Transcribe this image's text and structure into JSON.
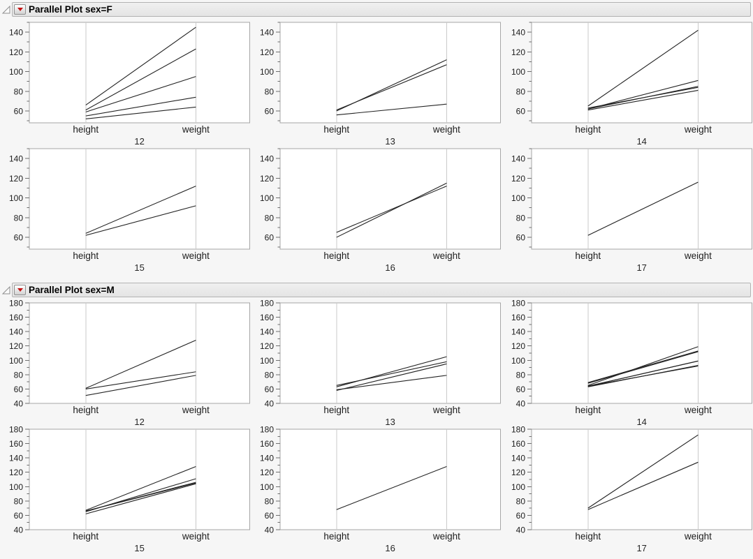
{
  "window": {
    "background": "#f6f6f6",
    "kind": "statistics-report"
  },
  "icons": {
    "disclosure_open": "open-right-triangle-outline-icon",
    "red_triangle_menu": "red-triangle-down-icon"
  },
  "colors": {
    "header_bg": "#eaeaea",
    "header_border": "#b2b2b2",
    "frame_border": "#a6a6a6",
    "gridline": "#c9c9c9",
    "axis": "#6f6f6f",
    "line": "#222222",
    "red_triangle": "#c41414",
    "text": "#1c1c1c"
  },
  "chart_data": [
    {
      "type": "line",
      "subtype": "parallel-coordinates",
      "title": "Parallel Plot sex=F",
      "categories": [
        "height",
        "weight"
      ],
      "ylim": [
        48,
        150
      ],
      "yticks": [
        60,
        80,
        100,
        120,
        140
      ],
      "yticks_minor": [
        50,
        70,
        90,
        110,
        130,
        150
      ],
      "grid": "category-gridlines-only",
      "legend": "none",
      "panels": [
        {
          "age": "12",
          "rows": [
            [
              59,
              95
            ],
            [
              61,
              123
            ],
            [
              55,
              74
            ],
            [
              66,
              145
            ],
            [
              52,
              64
            ]
          ]
        },
        {
          "age": "13",
          "rows": [
            [
              60,
              112
            ],
            [
              61,
              107
            ],
            [
              56,
              67
            ]
          ]
        },
        {
          "age": "14",
          "rows": [
            [
              61,
              81
            ],
            [
              62,
              91
            ],
            [
              65,
              142
            ],
            [
              63,
              84
            ],
            [
              62,
              85
            ]
          ]
        },
        {
          "age": "15",
          "rows": [
            [
              62,
              92
            ],
            [
              64,
              112
            ]
          ]
        },
        {
          "age": "16",
          "rows": [
            [
              65,
              112
            ],
            [
              60,
              115
            ]
          ]
        },
        {
          "age": "17",
          "rows": [
            [
              62,
              116
            ]
          ]
        }
      ]
    },
    {
      "type": "line",
      "subtype": "parallel-coordinates",
      "title": "Parallel Plot sex=M",
      "categories": [
        "height",
        "weight"
      ],
      "ylim": [
        40,
        180
      ],
      "yticks": [
        40,
        60,
        80,
        100,
        120,
        140,
        160,
        180
      ],
      "yticks_minor": [
        50,
        70,
        90,
        110,
        130,
        150,
        170
      ],
      "grid": "category-gridlines-only",
      "legend": "none",
      "panels": [
        {
          "age": "12",
          "rows": [
            [
              60,
              84
            ],
            [
              61,
              128
            ],
            [
              51,
              79
            ]
          ]
        },
        {
          "age": "13",
          "rows": [
            [
              65,
              98
            ],
            [
              63,
              105
            ],
            [
              58,
              95
            ],
            [
              59,
              79
            ]
          ]
        },
        {
          "age": "14",
          "rows": [
            [
              63,
              93
            ],
            [
              64,
              99
            ],
            [
              65,
              119
            ],
            [
              64,
              92
            ],
            [
              68,
              112
            ],
            [
              64,
              99
            ],
            [
              69,
              113
            ]
          ]
        },
        {
          "age": "15",
          "rows": [
            [
              67,
              128
            ],
            [
              65,
              111
            ],
            [
              66,
              105
            ],
            [
              62,
              104
            ],
            [
              66,
              106
            ]
          ]
        },
        {
          "age": "16",
          "rows": [
            [
              68,
              128
            ]
          ]
        },
        {
          "age": "17",
          "rows": [
            [
              68,
              134
            ],
            [
              70,
              172
            ]
          ]
        }
      ]
    }
  ]
}
